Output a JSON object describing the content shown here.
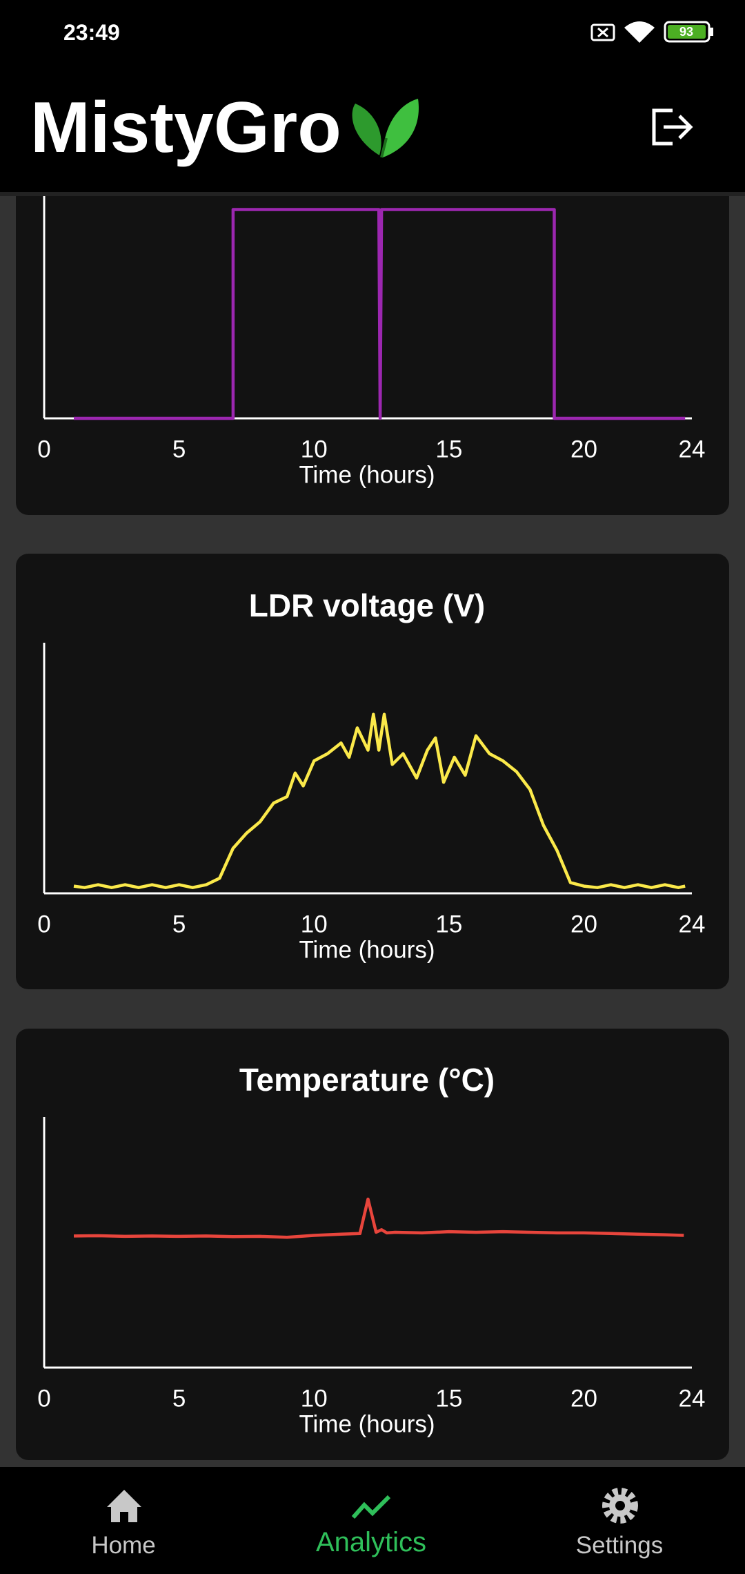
{
  "status_bar": {
    "time": "23:49",
    "battery": "93"
  },
  "header": {
    "title": "MistyGro"
  },
  "chart_data": [
    {
      "type": "line",
      "x_label": "Time (hours)",
      "color": "#9c27b0",
      "xlim": [
        0,
        24
      ],
      "xticks": [
        0,
        5,
        10,
        15,
        20,
        24
      ],
      "ylim": [
        0,
        1.2
      ],
      "x": [
        1.1,
        7.0,
        7.0,
        12.4,
        12.45,
        12.5,
        18.9,
        18.9,
        23.75
      ],
      "values": [
        0,
        0,
        1,
        1,
        0,
        1,
        1,
        0,
        0
      ]
    },
    {
      "type": "line",
      "title": "LDR voltage (V)",
      "x_label": "Time (hours)",
      "color": "#fbe94a",
      "xlim": [
        0,
        24
      ],
      "xticks": [
        0,
        5,
        10,
        15,
        20,
        24
      ],
      "ylim": [
        0,
        3.5
      ],
      "x": [
        1.1,
        1.5,
        2.0,
        2.5,
        3.0,
        3.5,
        4.0,
        4.5,
        5.0,
        5.5,
        6.0,
        6.5,
        7.0,
        7.5,
        8.0,
        8.5,
        9.0,
        9.3,
        9.6,
        10.0,
        10.5,
        11.0,
        11.3,
        11.6,
        12.0,
        12.2,
        12.4,
        12.6,
        12.9,
        13.3,
        13.8,
        14.2,
        14.5,
        14.8,
        15.2,
        15.6,
        16.0,
        16.5,
        17.0,
        17.5,
        18.0,
        18.5,
        19.0,
        19.5,
        20.0,
        20.5,
        21.0,
        21.5,
        22.0,
        22.5,
        23.0,
        23.5,
        23.75
      ],
      "values": [
        0.1,
        0.08,
        0.12,
        0.08,
        0.12,
        0.08,
        0.12,
        0.08,
        0.12,
        0.08,
        0.12,
        0.21,
        0.63,
        0.84,
        1.0,
        1.26,
        1.35,
        1.68,
        1.5,
        1.85,
        1.95,
        2.1,
        1.9,
        2.31,
        2.0,
        2.5,
        2.0,
        2.5,
        1.8,
        1.95,
        1.61,
        2.0,
        2.17,
        1.55,
        1.9,
        1.65,
        2.2,
        1.95,
        1.85,
        1.7,
        1.45,
        0.95,
        0.6,
        0.15,
        0.1,
        0.08,
        0.12,
        0.08,
        0.12,
        0.08,
        0.12,
        0.08,
        0.1
      ]
    },
    {
      "type": "line",
      "title": "Temperature (°C)",
      "x_label": "Time (hours)",
      "color": "#e8453c",
      "xlim": [
        0,
        24
      ],
      "xticks": [
        0,
        5,
        10,
        15,
        20,
        24
      ],
      "ylim": [
        0,
        40
      ],
      "x": [
        1.1,
        2,
        3,
        4,
        5,
        6,
        7,
        8,
        9,
        10,
        11,
        11.7,
        12.0,
        12.3,
        12.5,
        12.7,
        13,
        14,
        15,
        16,
        17,
        18,
        19,
        20,
        21,
        22,
        23,
        23.7
      ],
      "values": [
        21,
        21.05,
        20.95,
        21,
        20.95,
        21,
        20.9,
        20.95,
        20.8,
        21.1,
        21.3,
        21.4,
        26.9,
        21.6,
        22.0,
        21.5,
        21.6,
        21.5,
        21.7,
        21.6,
        21.7,
        21.6,
        21.5,
        21.5,
        21.4,
        21.3,
        21.2,
        21.1
      ]
    }
  ],
  "nav": {
    "items": [
      {
        "label": "Home"
      },
      {
        "label": "Analytics",
        "active": true
      },
      {
        "label": "Settings"
      }
    ]
  }
}
